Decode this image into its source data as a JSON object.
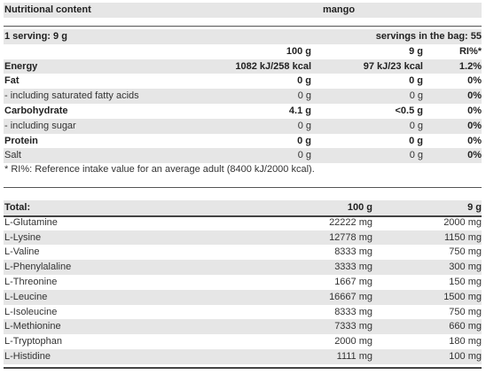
{
  "nutrition": {
    "header_label": "Nutritional content",
    "flavor": "mango",
    "serving_label": "1 serving: 9 g",
    "servings_in_bag": "servings in the bag: 55",
    "col_100g": "100 g",
    "col_9g": "9 g",
    "col_ri": "RI%*",
    "rows": [
      {
        "name": "Energy",
        "v100": "1082 kJ/258 kcal",
        "v9": "97 kJ/23 kcal",
        "ri": "1.2%",
        "bold": true,
        "gray": true
      },
      {
        "name": "Fat",
        "v100": "0 g",
        "v9": "0 g",
        "ri": "0%",
        "bold": true,
        "gray": false
      },
      {
        "name": "- including saturated fatty acids",
        "v100": "0 g",
        "v9": "0 g",
        "ri": "0%",
        "bold": false,
        "gray": true
      },
      {
        "name": "Carbohydrate",
        "v100": "4.1 g",
        "v9": "<0.5 g",
        "ri": "0%",
        "bold": true,
        "gray": false
      },
      {
        "name": "- including sugar",
        "v100": "0 g",
        "v9": "0 g",
        "ri": "0%",
        "bold": false,
        "gray": true
      },
      {
        "name": "Protein",
        "v100": "0 g",
        "v9": "0 g",
        "ri": "0%",
        "bold": true,
        "gray": false
      },
      {
        "name": "Salt",
        "v100": "0 g",
        "v9": "0 g",
        "ri": "0%",
        "bold": false,
        "gray": true
      }
    ],
    "footnote": "* RI%: Reference intake value for an average adult (8400 kJ/2000 kcal)."
  },
  "amino": {
    "total_label": "Total:",
    "col_100g": "100 g",
    "col_9g": "9 g",
    "rows": [
      {
        "name": "L-Glutamine",
        "v100": "22222 mg",
        "v9": "2000 mg"
      },
      {
        "name": "L-Lysine",
        "v100": "12778 mg",
        "v9": "1150 mg"
      },
      {
        "name": "L-Valine",
        "v100": "8333 mg",
        "v9": "750 mg"
      },
      {
        "name": "L-Phenylalaline",
        "v100": "3333 mg",
        "v9": "300 mg"
      },
      {
        "name": "L-Threonine",
        "v100": "1667 mg",
        "v9": "150 mg"
      },
      {
        "name": "L-Leucine",
        "v100": "16667 mg",
        "v9": "1500 mg"
      },
      {
        "name": "L-Isoleucine",
        "v100": "8333 mg",
        "v9": "750 mg"
      },
      {
        "name": "L-Methionine",
        "v100": "7333 mg",
        "v9": "660 mg"
      },
      {
        "name": "L-Tryptophan",
        "v100": "2000 mg",
        "v9": "180 mg"
      },
      {
        "name": "L-Histidine",
        "v100": "1111 mg",
        "v9": "100 mg"
      }
    ]
  },
  "colors": {
    "stripe": "#e6e6e6",
    "rule": "#444444",
    "text": "#333333"
  }
}
